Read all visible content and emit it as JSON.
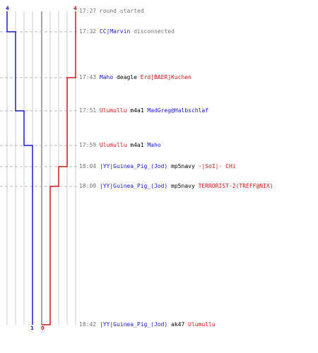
{
  "colors": {
    "blue_team": "#1a1ac8",
    "red_team": "#c81a1a",
    "grid": "#cccccc",
    "center": "#888888",
    "dashed": "#bbbbbb",
    "time": "#777777"
  },
  "counts": {
    "blue_start": "4",
    "red_start": "4",
    "blue_end": "1",
    "red_end": "0"
  },
  "events": [
    {
      "time": "17:27",
      "parts": [
        {
          "text": "round started",
          "color": "grey"
        }
      ]
    },
    {
      "time": "17:32",
      "parts": [
        {
          "text": "CC|Marvin",
          "color": "blue"
        },
        {
          "text": " disconnected",
          "color": "grey"
        }
      ]
    },
    {
      "time": "17:43",
      "parts": [
        {
          "text": "Maho",
          "color": "blue"
        },
        {
          "text": " deagle ",
          "color": "black"
        },
        {
          "text": "Erd[BAER]Kuchen",
          "color": "red"
        }
      ]
    },
    {
      "time": "17:51",
      "parts": [
        {
          "text": "Ulumullu",
          "color": "red"
        },
        {
          "text": " m4a1 ",
          "color": "black"
        },
        {
          "text": "MadGreg@Halbschlaf",
          "color": "blue"
        }
      ]
    },
    {
      "time": "17:59",
      "parts": [
        {
          "text": "Ulumullu",
          "color": "red"
        },
        {
          "text": " m4a1 ",
          "color": "black"
        },
        {
          "text": "Maho",
          "color": "blue"
        }
      ]
    },
    {
      "time": "18:04",
      "parts": [
        {
          "text": "|YY|Guinea_Pig_(Jod)",
          "color": "blue"
        },
        {
          "text": " mp5navy ",
          "color": "black"
        },
        {
          "text": "-|SoI|- CHi",
          "color": "red"
        }
      ]
    },
    {
      "time": "18:09",
      "parts": [
        {
          "text": "|YY|Guinea_Pig_(Jod)",
          "color": "blue"
        },
        {
          "text": " mp5navy ",
          "color": "black"
        },
        {
          "text": "TERRORIST-2(TREFF@NIX)",
          "color": "red"
        }
      ]
    },
    {
      "time": "18:42",
      "parts": [
        {
          "text": "|YY|Guinea_Pig_(Jod)",
          "color": "blue"
        },
        {
          "text": " ak47 ",
          "color": "black"
        },
        {
          "text": "Ulumullu",
          "color": "red"
        }
      ]
    }
  ],
  "chart_data": {
    "type": "line",
    "x": [
      "17:27",
      "17:32",
      "17:43",
      "17:51",
      "17:59",
      "18:04",
      "18:09",
      "18:42"
    ],
    "series": [
      {
        "values": [
          4,
          3,
          3,
          2,
          1,
          1,
          1,
          1
        ]
      },
      {
        "values": [
          4,
          4,
          3,
          3,
          3,
          2,
          1,
          0
        ]
      }
    ],
    "ylim": [
      0,
      4
    ],
    "grid": true
  }
}
